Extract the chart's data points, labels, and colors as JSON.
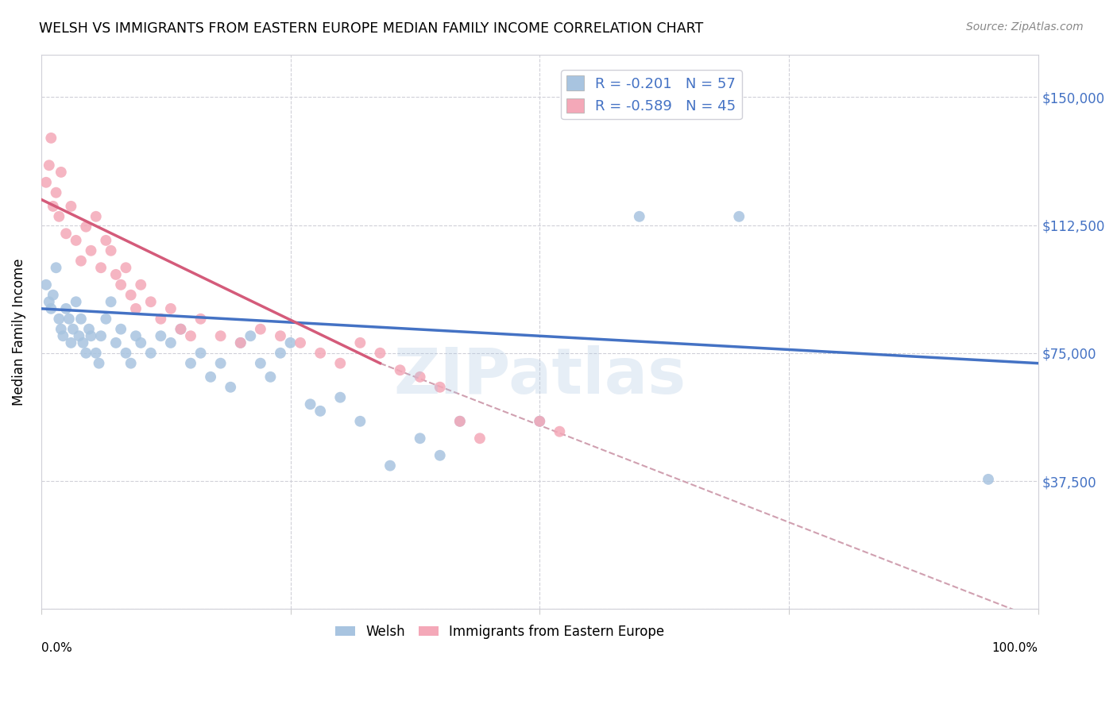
{
  "title": "WELSH VS IMMIGRANTS FROM EASTERN EUROPE MEDIAN FAMILY INCOME CORRELATION CHART",
  "source": "Source: ZipAtlas.com",
  "ylabel": "Median Family Income",
  "yticks": [
    0,
    37500,
    75000,
    112500,
    150000
  ],
  "ytick_labels": [
    "",
    "$37,500",
    "$75,000",
    "$112,500",
    "$150,000"
  ],
  "xlim": [
    0.0,
    1.0
  ],
  "ylim": [
    0,
    162500
  ],
  "welsh_color": "#a8c4e0",
  "immigrant_color": "#f4a8b8",
  "welsh_line_color": "#4472c4",
  "immigrant_line_color": "#d45b7a",
  "dashed_line_color": "#d0a0b0",
  "watermark": "ZIPatlas",
  "legend_R_welsh": "-0.201",
  "legend_N_welsh": "57",
  "legend_R_immigrant": "-0.589",
  "legend_N_immigrant": "45",
  "welsh_scatter_x": [
    0.005,
    0.008,
    0.01,
    0.012,
    0.015,
    0.018,
    0.02,
    0.022,
    0.025,
    0.028,
    0.03,
    0.032,
    0.035,
    0.038,
    0.04,
    0.042,
    0.045,
    0.048,
    0.05,
    0.055,
    0.058,
    0.06,
    0.065,
    0.07,
    0.075,
    0.08,
    0.085,
    0.09,
    0.095,
    0.1,
    0.11,
    0.12,
    0.13,
    0.14,
    0.15,
    0.16,
    0.17,
    0.18,
    0.19,
    0.2,
    0.21,
    0.22,
    0.23,
    0.24,
    0.25,
    0.27,
    0.28,
    0.3,
    0.32,
    0.35,
    0.38,
    0.4,
    0.42,
    0.5,
    0.6,
    0.7,
    0.95
  ],
  "welsh_scatter_y": [
    95000,
    90000,
    88000,
    92000,
    100000,
    85000,
    82000,
    80000,
    88000,
    85000,
    78000,
    82000,
    90000,
    80000,
    85000,
    78000,
    75000,
    82000,
    80000,
    75000,
    72000,
    80000,
    85000,
    90000,
    78000,
    82000,
    75000,
    72000,
    80000,
    78000,
    75000,
    80000,
    78000,
    82000,
    72000,
    75000,
    68000,
    72000,
    65000,
    78000,
    80000,
    72000,
    68000,
    75000,
    78000,
    60000,
    58000,
    62000,
    55000,
    42000,
    50000,
    45000,
    55000,
    55000,
    115000,
    115000,
    38000
  ],
  "immigrant_scatter_x": [
    0.005,
    0.008,
    0.01,
    0.012,
    0.015,
    0.018,
    0.02,
    0.025,
    0.03,
    0.035,
    0.04,
    0.045,
    0.05,
    0.055,
    0.06,
    0.065,
    0.07,
    0.075,
    0.08,
    0.085,
    0.09,
    0.095,
    0.1,
    0.11,
    0.12,
    0.13,
    0.14,
    0.15,
    0.16,
    0.18,
    0.2,
    0.22,
    0.24,
    0.26,
    0.28,
    0.3,
    0.32,
    0.34,
    0.36,
    0.38,
    0.4,
    0.42,
    0.44,
    0.5,
    0.52
  ],
  "immigrant_scatter_y": [
    125000,
    130000,
    138000,
    118000,
    122000,
    115000,
    128000,
    110000,
    118000,
    108000,
    102000,
    112000,
    105000,
    115000,
    100000,
    108000,
    105000,
    98000,
    95000,
    100000,
    92000,
    88000,
    95000,
    90000,
    85000,
    88000,
    82000,
    80000,
    85000,
    80000,
    78000,
    82000,
    80000,
    78000,
    75000,
    72000,
    78000,
    75000,
    70000,
    68000,
    65000,
    55000,
    50000,
    55000,
    52000
  ],
  "welsh_trend_x": [
    0.0,
    1.0
  ],
  "welsh_trend_y": [
    88000,
    72000
  ],
  "immigrant_trend_x": [
    0.0,
    0.34
  ],
  "immigrant_trend_y": [
    120000,
    72000
  ],
  "dashed_trend_x": [
    0.34,
    1.0
  ],
  "dashed_trend_y": [
    72000,
    -3000
  ]
}
